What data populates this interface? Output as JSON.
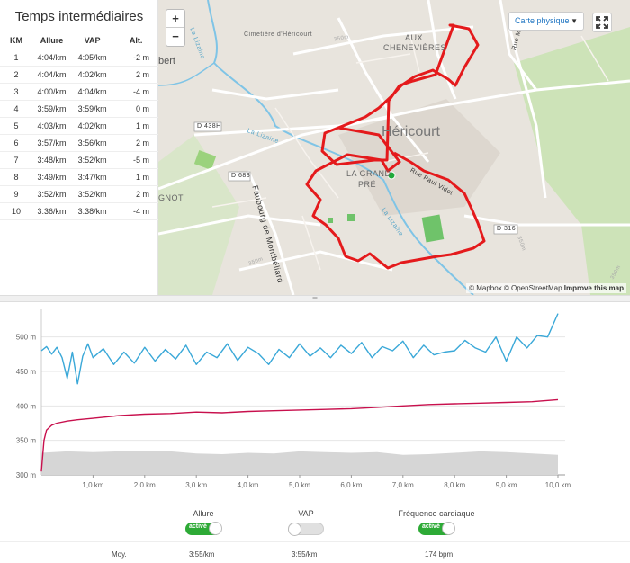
{
  "splits": {
    "title": "Temps intermédiaires",
    "headers": [
      "KM",
      "Allure",
      "VAP",
      "Alt."
    ],
    "rows": [
      [
        "1",
        "4:04/km",
        "4:05/km",
        "-2 m"
      ],
      [
        "2",
        "4:04/km",
        "4:02/km",
        "2 m"
      ],
      [
        "3",
        "4:00/km",
        "4:04/km",
        "-4 m"
      ],
      [
        "4",
        "3:59/km",
        "3:59/km",
        "0 m"
      ],
      [
        "5",
        "4:03/km",
        "4:02/km",
        "1 m"
      ],
      [
        "6",
        "3:57/km",
        "3:56/km",
        "2 m"
      ],
      [
        "7",
        "3:48/km",
        "3:52/km",
        "-5 m"
      ],
      [
        "8",
        "3:49/km",
        "3:47/km",
        "1 m"
      ],
      [
        "9",
        "3:52/km",
        "3:52/km",
        "2 m"
      ],
      [
        "10",
        "3:36/km",
        "3:38/km",
        "-4 m"
      ]
    ]
  },
  "map": {
    "zoom_in": "+",
    "zoom_out": "−",
    "map_type": "Carte physique",
    "labels": {
      "cemetery": "Cimetière d'Héricourt",
      "chevenieres_1": "AUX",
      "chevenieres_2": "CHENEVIÈRES",
      "hericourt": "Héricourt",
      "la_grand_pre_1": "LA GRAND",
      "la_grand_pre_2": "PRÉ",
      "d438h": "D 438H",
      "d683": "D 683",
      "d316": "D 316",
      "faubourg": "Faubourg de Montbéliard",
      "rue_paul_vidot": "Rue Paul Vidot",
      "la_lizaine_1": "La Lizaine",
      "la_lizaine_2": "La Lizaine",
      "la_lizaine_3": "La Lizaine",
      "rue_ma": "Rue Ma",
      "bert": "bert",
      "gnot": "GNOT",
      "c350_1": "350m",
      "c350_2": "350m",
      "c350_3": "350m",
      "c350_4": "350m"
    },
    "attribution_left": "© Mapbox © OpenStreetMap ",
    "attribution_bold": "Improve this map",
    "colors": {
      "route": "#e41a1c",
      "start": "#1faa3a",
      "water": "#7fc4e6",
      "park": "#cde3b8",
      "green": "#6fc36a"
    }
  },
  "chart_data": {
    "type": "line",
    "xlabel": "",
    "ylabel": "",
    "x_ticks": [
      "1,0 km",
      "2,0 km",
      "3,0 km",
      "4,0 km",
      "5,0 km",
      "6,0 km",
      "7,0 km",
      "8,0 km",
      "9,0 km",
      "10,0 km"
    ],
    "y_ticks": [
      "500 m",
      "450 m",
      "400 m",
      "350 m",
      "300 m"
    ],
    "xlim": [
      0,
      10.0
    ],
    "ylim": [
      300,
      540
    ],
    "series": [
      {
        "name": "Allure",
        "color": "#3aa8d8",
        "x": [
          0,
          0.1,
          0.2,
          0.3,
          0.4,
          0.5,
          0.6,
          0.7,
          0.8,
          0.9,
          1.0,
          1.2,
          1.4,
          1.6,
          1.8,
          2.0,
          2.2,
          2.4,
          2.6,
          2.8,
          3.0,
          3.2,
          3.4,
          3.6,
          3.8,
          4.0,
          4.2,
          4.4,
          4.6,
          4.8,
          5.0,
          5.2,
          5.4,
          5.6,
          5.8,
          6.0,
          6.2,
          6.4,
          6.6,
          6.8,
          7.0,
          7.2,
          7.4,
          7.6,
          7.8,
          8.0,
          8.2,
          8.4,
          8.6,
          8.8,
          9.0,
          9.2,
          9.4,
          9.6,
          9.8,
          10.0
        ],
        "values": [
          480,
          486,
          475,
          485,
          470,
          440,
          478,
          432,
          472,
          490,
          470,
          483,
          460,
          478,
          462,
          485,
          465,
          482,
          468,
          488,
          460,
          478,
          470,
          490,
          466,
          485,
          476,
          460,
          482,
          470,
          490,
          472,
          484,
          470,
          488,
          476,
          492,
          470,
          486,
          480,
          494,
          470,
          488,
          474,
          478,
          480,
          495,
          484,
          478,
          500,
          465,
          500,
          484,
          502,
          500,
          534
        ]
      },
      {
        "name": "Fréquence cardiaque",
        "color": "#c8104d",
        "x": [
          0,
          0.05,
          0.1,
          0.2,
          0.3,
          0.5,
          0.7,
          1.0,
          1.5,
          2.0,
          2.5,
          3.0,
          3.5,
          4.0,
          4.5,
          5.0,
          5.5,
          6.0,
          6.5,
          7.0,
          7.5,
          8.0,
          8.5,
          9.0,
          9.5,
          10.0
        ],
        "values": [
          305,
          350,
          365,
          372,
          375,
          378,
          380,
          382,
          386,
          388,
          389,
          391,
          390,
          392,
          393,
          394,
          395,
          396,
          398,
          400,
          402,
          403,
          404,
          405,
          406,
          409
        ]
      },
      {
        "name": "Altitude",
        "color": "#d6d6d6",
        "x": [
          0,
          0.5,
          1.0,
          1.5,
          2.0,
          2.5,
          3.0,
          3.5,
          4.0,
          4.5,
          5.0,
          5.5,
          6.0,
          6.5,
          7.0,
          7.5,
          8.0,
          8.5,
          9.0,
          9.5,
          10.0
        ],
        "values": [
          332,
          334,
          333,
          334,
          335,
          334,
          331,
          330,
          332,
          331,
          334,
          333,
          332,
          333,
          329,
          330,
          332,
          334,
          333,
          331,
          329
        ]
      }
    ]
  },
  "toggles": [
    {
      "label": "Allure",
      "state": "activé",
      "on": true
    },
    {
      "label": "VAP",
      "state": "",
      "on": false
    },
    {
      "label": "Fréquence cardiaque",
      "state": "activé",
      "on": true
    }
  ],
  "averages": {
    "label": "Moy.",
    "pace": "3:55/km",
    "vap": "3:55/km",
    "hr": "174 bpm"
  }
}
